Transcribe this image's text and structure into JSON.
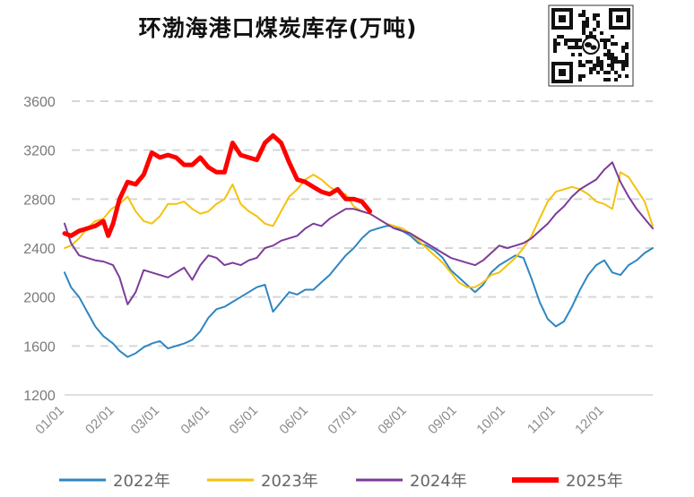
{
  "chart_data": {
    "type": "line",
    "title": "环渤海港口煤炭库存(万吨)",
    "xlabel": "",
    "ylabel": "",
    "ylim": [
      1200,
      3600
    ],
    "yticks": [
      1200,
      1600,
      2000,
      2400,
      2800,
      3200,
      3600
    ],
    "x_tick_labels": [
      "01/01",
      "02/01",
      "03/01",
      "04/01",
      "05/01",
      "06/01",
      "07/01",
      "08/01",
      "09/01",
      "10/01",
      "11/01",
      "12/01"
    ],
    "grid": "horizontal-dashed",
    "legend_position": "bottom",
    "x_unit": "day_of_year",
    "series": [
      {
        "name": "2022年",
        "color": "#2e86c1",
        "line_width": 2,
        "x": [
          1,
          5,
          10,
          15,
          20,
          25,
          31,
          35,
          40,
          45,
          50,
          55,
          60,
          65,
          70,
          75,
          80,
          85,
          90,
          95,
          100,
          105,
          110,
          115,
          120,
          125,
          130,
          135,
          140,
          145,
          150,
          155,
          160,
          165,
          170,
          175,
          180,
          185,
          190,
          195,
          200,
          205,
          210,
          215,
          220,
          225,
          230,
          235,
          240,
          245,
          250,
          255,
          260,
          265,
          270,
          275,
          280,
          285,
          290,
          295,
          300,
          305,
          310,
          315,
          320,
          325,
          330,
          335,
          340,
          345,
          350,
          355,
          360,
          365
        ],
        "y": [
          2200,
          2080,
          2000,
          1880,
          1760,
          1680,
          1620,
          1560,
          1510,
          1540,
          1590,
          1620,
          1640,
          1580,
          1600,
          1620,
          1650,
          1720,
          1830,
          1900,
          1920,
          1960,
          2000,
          2040,
          2080,
          2100,
          1880,
          1960,
          2040,
          2020,
          2060,
          2060,
          2120,
          2180,
          2260,
          2340,
          2400,
          2480,
          2540,
          2560,
          2580,
          2580,
          2540,
          2500,
          2440,
          2420,
          2380,
          2320,
          2220,
          2160,
          2100,
          2040,
          2100,
          2200,
          2260,
          2300,
          2340,
          2320,
          2150,
          1960,
          1820,
          1760,
          1800,
          1920,
          2060,
          2180,
          2260,
          2300,
          2200,
          2180,
          2260,
          2300,
          2360,
          2400
        ]
      },
      {
        "name": "2023年",
        "color": "#f4c20d",
        "line_width": 2,
        "x": [
          1,
          5,
          10,
          15,
          20,
          25,
          30,
          35,
          40,
          45,
          50,
          55,
          60,
          65,
          70,
          75,
          80,
          85,
          90,
          95,
          100,
          105,
          110,
          115,
          120,
          125,
          130,
          135,
          140,
          145,
          150,
          155,
          160,
          165,
          170,
          175,
          180,
          185,
          190,
          195,
          200,
          205,
          210,
          215,
          220,
          225,
          230,
          235,
          240,
          245,
          250,
          255,
          260,
          265,
          270,
          275,
          280,
          285,
          290,
          295,
          300,
          305,
          310,
          315,
          320,
          325,
          330,
          335,
          340,
          345,
          350,
          355,
          360,
          365
        ],
        "y": [
          2400,
          2420,
          2480,
          2560,
          2620,
          2640,
          2720,
          2760,
          2820,
          2700,
          2620,
          2600,
          2660,
          2760,
          2760,
          2780,
          2720,
          2680,
          2700,
          2760,
          2800,
          2920,
          2760,
          2700,
          2660,
          2600,
          2580,
          2700,
          2820,
          2880,
          2960,
          3000,
          2960,
          2900,
          2860,
          2840,
          2740,
          2700,
          2680,
          2640,
          2600,
          2580,
          2560,
          2520,
          2460,
          2400,
          2340,
          2280,
          2200,
          2120,
          2080,
          2080,
          2120,
          2180,
          2200,
          2260,
          2320,
          2400,
          2500,
          2640,
          2780,
          2860,
          2880,
          2900,
          2880,
          2840,
          2780,
          2760,
          2720,
          3020,
          2980,
          2880,
          2780,
          2580
        ]
      },
      {
        "name": "2024年",
        "color": "#7d3c98",
        "line_width": 2,
        "x": [
          1,
          5,
          10,
          15,
          20,
          25,
          31,
          35,
          40,
          45,
          50,
          55,
          60,
          65,
          70,
          75,
          80,
          85,
          90,
          95,
          100,
          105,
          110,
          115,
          120,
          125,
          130,
          135,
          140,
          145,
          150,
          155,
          160,
          165,
          170,
          175,
          180,
          185,
          190,
          195,
          200,
          205,
          210,
          215,
          220,
          225,
          230,
          235,
          240,
          245,
          250,
          255,
          260,
          265,
          270,
          275,
          280,
          285,
          290,
          295,
          300,
          305,
          310,
          315,
          320,
          325,
          330,
          335,
          340,
          345,
          350,
          355,
          360,
          365
        ],
        "y": [
          2600,
          2440,
          2340,
          2320,
          2300,
          2290,
          2260,
          2160,
          1940,
          2040,
          2220,
          2200,
          2180,
          2160,
          2200,
          2240,
          2140,
          2260,
          2340,
          2320,
          2260,
          2280,
          2260,
          2300,
          2320,
          2400,
          2420,
          2460,
          2480,
          2500,
          2560,
          2600,
          2580,
          2640,
          2680,
          2720,
          2720,
          2700,
          2680,
          2640,
          2600,
          2560,
          2540,
          2520,
          2480,
          2440,
          2400,
          2360,
          2320,
          2300,
          2280,
          2260,
          2300,
          2360,
          2420,
          2400,
          2420,
          2440,
          2480,
          2540,
          2600,
          2680,
          2740,
          2820,
          2880,
          2920,
          2960,
          3040,
          3100,
          2940,
          2820,
          2720,
          2640,
          2560
        ]
      },
      {
        "name": "2025年",
        "color": "#ff0000",
        "line_width": 5,
        "x": [
          1,
          5,
          10,
          15,
          20,
          25,
          28,
          31,
          35,
          40,
          45,
          50,
          55,
          60,
          65,
          70,
          75,
          80,
          85,
          90,
          95,
          100,
          105,
          110,
          115,
          120,
          125,
          130,
          135,
          140,
          145,
          150,
          155,
          160,
          165,
          170,
          175,
          180,
          185,
          190
        ],
        "y": [
          2520,
          2500,
          2540,
          2560,
          2580,
          2620,
          2500,
          2600,
          2800,
          2940,
          2920,
          3000,
          3180,
          3140,
          3160,
          3140,
          3080,
          3080,
          3140,
          3060,
          3020,
          3020,
          3260,
          3160,
          3140,
          3120,
          3260,
          3320,
          3260,
          3100,
          2960,
          2940,
          2900,
          2860,
          2840,
          2880,
          2800,
          2800,
          2780,
          2700
        ]
      }
    ]
  }
}
